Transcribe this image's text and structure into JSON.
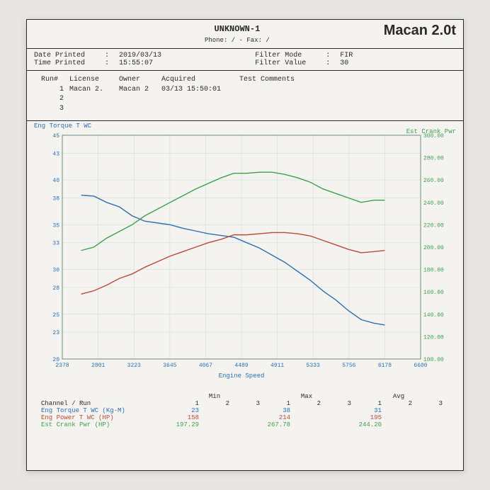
{
  "header": {
    "title": "UNKNOWN-1",
    "phone_line": "Phone:  /  - Fax: /",
    "right_title": "Macan 2.0t"
  },
  "meta": {
    "date_label": "Date Printed",
    "date_value": "2019/03/13",
    "time_label": "Time Printed",
    "time_value": "15:55:07",
    "fmode_label": "Filter Mode",
    "fmode_value": "FIR",
    "fval_label": "Filter Value",
    "fval_value": "30"
  },
  "run_table": {
    "headers": [
      "Run#",
      "License",
      "Owner",
      "Acquired",
      "Test Comments"
    ],
    "rows": [
      {
        "n": "1",
        "lic": "Macan 2.",
        "own": "Macan 2",
        "acq": "03/13 15:50:01"
      },
      {
        "n": "2",
        "lic": "",
        "own": "",
        "acq": ""
      },
      {
        "n": "3",
        "lic": "",
        "own": "",
        "acq": ""
      }
    ]
  },
  "chart": {
    "type": "line",
    "title_left": "Eng Torque T WC",
    "title_right": "Est Crank Pwr",
    "background_color": "#f5f3ef",
    "grid_color": "#cfe3d2",
    "axis_color": "#6b8f7a",
    "xlabel": "Engine Speed",
    "label_fontsize": 9,
    "xlim": [
      2378,
      6600
    ],
    "xticks": [
      2378,
      2801,
      3223,
      3645,
      4067,
      4489,
      4911,
      5333,
      5756,
      6178,
      6600
    ],
    "y_left": {
      "lim": [
        20,
        45
      ],
      "ticks": [
        20,
        23,
        25,
        28,
        30,
        33,
        35,
        38,
        40,
        43,
        45
      ],
      "color": "#2d6fb2"
    },
    "y_right": {
      "lim": [
        100,
        300
      ],
      "ticks": [
        100,
        120,
        140,
        160,
        180,
        200,
        220,
        240,
        260,
        280,
        300
      ],
      "color": "#3fa050"
    },
    "series": [
      {
        "name": "torque",
        "axis": "left",
        "color": "#2d6fb2",
        "width": 1.4,
        "points": [
          [
            2600,
            38.3
          ],
          [
            2750,
            38.2
          ],
          [
            2900,
            37.5
          ],
          [
            3050,
            37.0
          ],
          [
            3200,
            36.0
          ],
          [
            3350,
            35.4
          ],
          [
            3500,
            35.2
          ],
          [
            3650,
            35.0
          ],
          [
            3800,
            34.6
          ],
          [
            3950,
            34.3
          ],
          [
            4100,
            34.0
          ],
          [
            4250,
            33.8
          ],
          [
            4400,
            33.6
          ],
          [
            4550,
            33.0
          ],
          [
            4700,
            32.4
          ],
          [
            4850,
            31.6
          ],
          [
            5000,
            30.8
          ],
          [
            5150,
            29.8
          ],
          [
            5300,
            28.8
          ],
          [
            5450,
            27.6
          ],
          [
            5600,
            26.6
          ],
          [
            5750,
            25.4
          ],
          [
            5900,
            24.4
          ],
          [
            6050,
            24.0
          ],
          [
            6178,
            23.8
          ]
        ]
      },
      {
        "name": "power",
        "axis": "right",
        "color": "#b84a3a",
        "width": 1.4,
        "points": [
          [
            2600,
            158
          ],
          [
            2750,
            161
          ],
          [
            2900,
            166
          ],
          [
            3050,
            172
          ],
          [
            3200,
            176
          ],
          [
            3350,
            182
          ],
          [
            3500,
            187
          ],
          [
            3650,
            192
          ],
          [
            3800,
            196
          ],
          [
            3950,
            200
          ],
          [
            4100,
            204
          ],
          [
            4250,
            207
          ],
          [
            4400,
            211
          ],
          [
            4550,
            211
          ],
          [
            4700,
            212
          ],
          [
            4850,
            213
          ],
          [
            5000,
            213
          ],
          [
            5150,
            212
          ],
          [
            5300,
            210
          ],
          [
            5450,
            206
          ],
          [
            5600,
            202
          ],
          [
            5750,
            198
          ],
          [
            5900,
            195
          ],
          [
            6050,
            196
          ],
          [
            6178,
            197
          ]
        ]
      },
      {
        "name": "crank",
        "axis": "right",
        "color": "#3fa050",
        "width": 1.4,
        "points": [
          [
            2600,
            197
          ],
          [
            2750,
            200
          ],
          [
            2900,
            208
          ],
          [
            3050,
            214
          ],
          [
            3200,
            220
          ],
          [
            3350,
            228
          ],
          [
            3500,
            234
          ],
          [
            3650,
            240
          ],
          [
            3800,
            246
          ],
          [
            3950,
            252
          ],
          [
            4100,
            257
          ],
          [
            4250,
            262
          ],
          [
            4400,
            266
          ],
          [
            4550,
            266
          ],
          [
            4700,
            267
          ],
          [
            4850,
            267
          ],
          [
            5000,
            265
          ],
          [
            5150,
            262
          ],
          [
            5300,
            258
          ],
          [
            5450,
            252
          ],
          [
            5600,
            248
          ],
          [
            5750,
            244
          ],
          [
            5900,
            240
          ],
          [
            6050,
            242
          ],
          [
            6178,
            242
          ]
        ]
      }
    ]
  },
  "summary": {
    "group_headers": [
      "Min",
      "Max",
      "Avg"
    ],
    "sub_cols": [
      "1",
      "2",
      "3"
    ],
    "channel_label": "Channel / Run",
    "rows": [
      {
        "label": "Eng Torque T WC (Kg-M)",
        "color": "#2d6fb2",
        "min1": "23",
        "max1": "38",
        "avg1": "31"
      },
      {
        "label": "Eng Power T WC (HP)",
        "color": "#b84a3a",
        "min1": "158",
        "max1": "214",
        "avg1": "195"
      },
      {
        "label": "Est Crank Pwr (HP)",
        "color": "#3fa050",
        "min1": "197.29",
        "max1": "267.78",
        "avg1": "244.20"
      }
    ]
  }
}
